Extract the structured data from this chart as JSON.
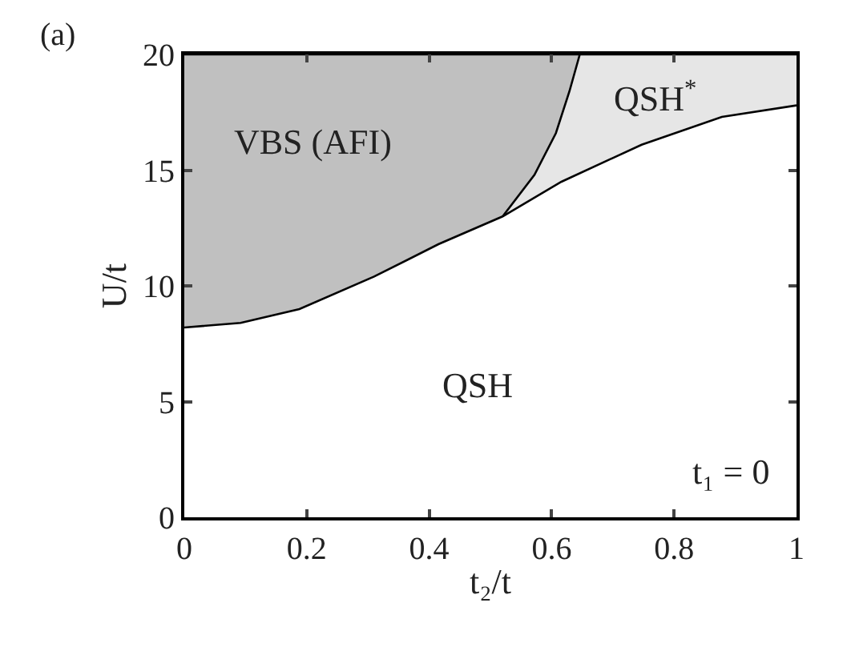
{
  "chart_data": {
    "type": "area",
    "xlabel": "t₂/t",
    "ylabel": "U/t",
    "xlim": [
      0,
      1
    ],
    "ylim": [
      0,
      20
    ],
    "xticks": [
      0,
      0.2,
      0.4,
      0.6,
      0.8,
      1
    ],
    "yticks": [
      0,
      5,
      10,
      15,
      20
    ],
    "line_style": "solid",
    "series": [
      {
        "color": "#c0c0c0",
        "x": [
          0,
          0.646
        ],
        "values": [
          20,
          20
        ]
      },
      {
        "color": "#e6e6e6",
        "x": [
          0.52,
          0.572,
          0.607,
          0.629,
          0.646,
          1
        ],
        "values": [
          13,
          14.8,
          16.6,
          18.4,
          20,
          20
        ]
      },
      {
        "color": "#ffffff",
        "x": [
          0,
          0.092,
          0.188,
          0.31,
          0.415,
          0.52,
          0.616,
          0.747,
          0.878,
          1
        ],
        "values": [
          8.2,
          8.4,
          9,
          10.4,
          11.8,
          13,
          14.5,
          16.1,
          17.3,
          17.8
        ]
      }
    ],
    "annotations": [
      "VBS (AFI)",
      "QSH$^{*}$",
      "QSH",
      "t₁ = 0",
      "(a)"
    ]
  }
}
